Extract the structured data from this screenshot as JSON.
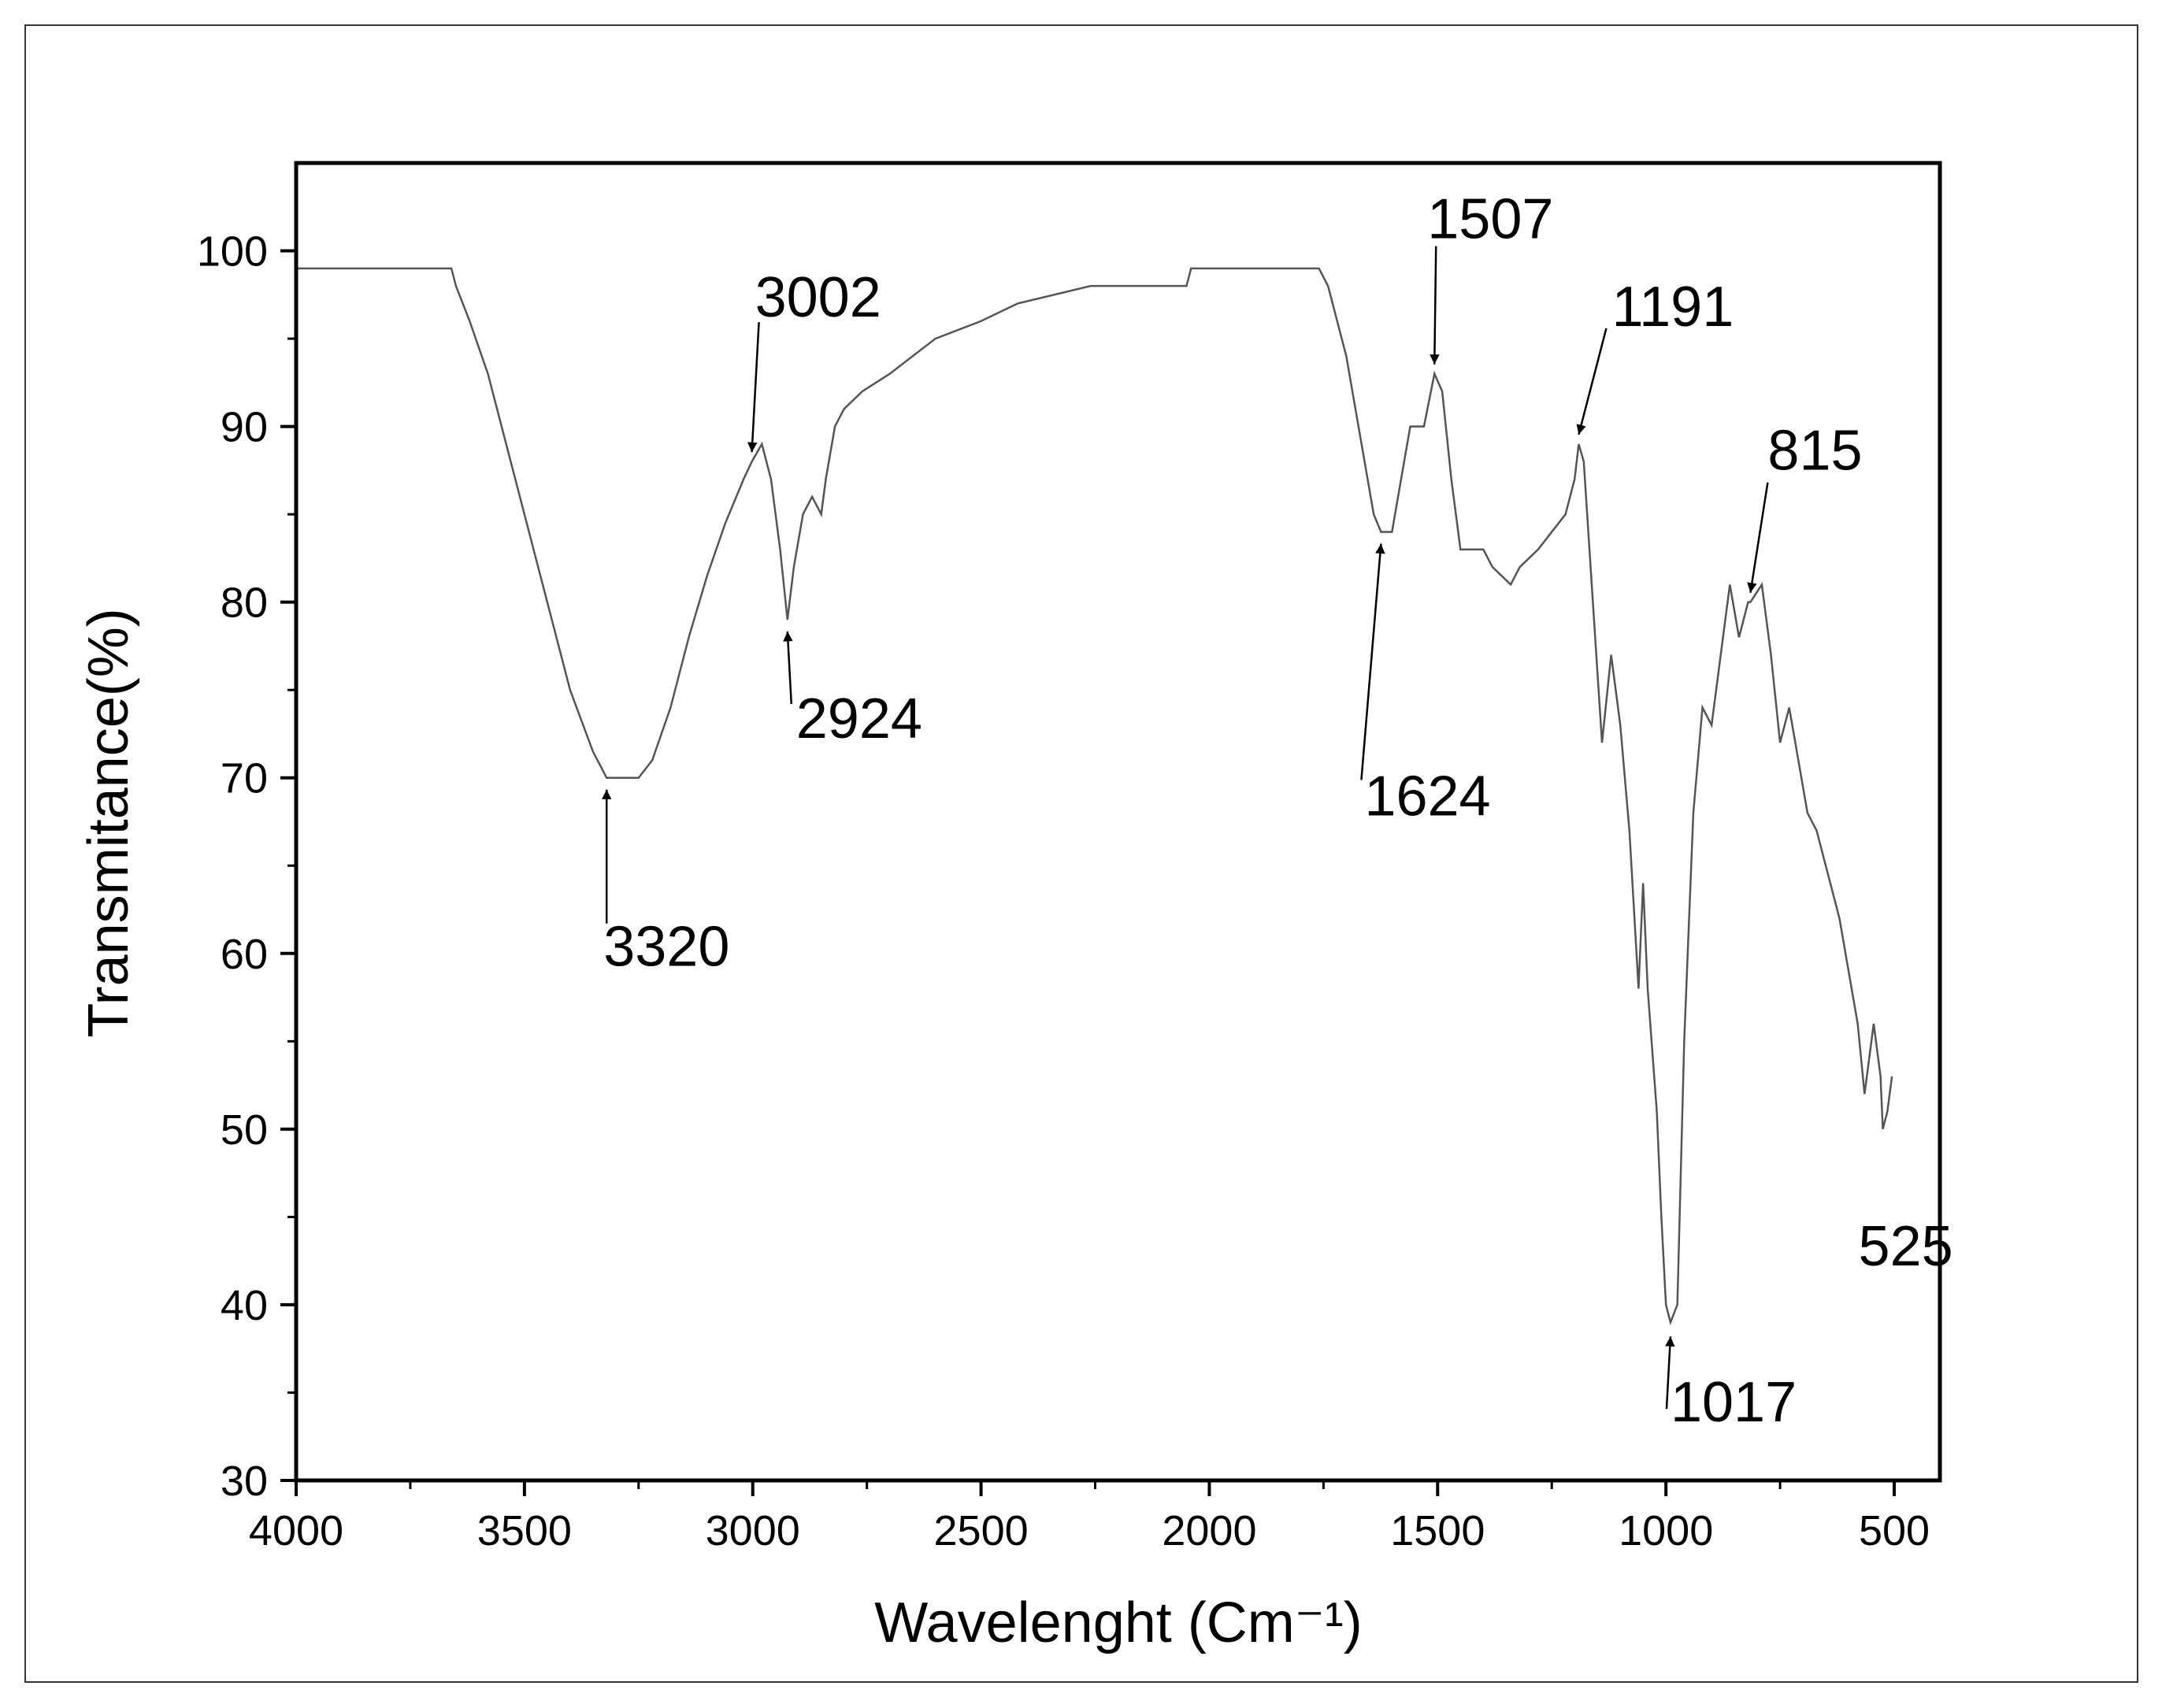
{
  "chart_data": {
    "type": "line",
    "xlabel": "Wavelenght (Cm⁻¹)",
    "ylabel": "Transmitance(%)",
    "xlim": [
      4000,
      400
    ],
    "ylim": [
      30,
      105
    ],
    "xticks": [
      4000,
      3500,
      3000,
      2500,
      2000,
      1500,
      1000,
      500
    ],
    "yticks": [
      30,
      40,
      50,
      60,
      70,
      80,
      90,
      100
    ],
    "series": [
      {
        "color": "#555555",
        "x": [
          4000,
          3660,
          3650,
          3620,
          3580,
          3540,
          3500,
          3450,
          3400,
          3350,
          3320,
          3250,
          3220,
          3180,
          3140,
          3100,
          3060,
          3020,
          3002,
          2980,
          2960,
          2940,
          2924,
          2910,
          2890,
          2870,
          2850,
          2840,
          2820,
          2800,
          2760,
          2700,
          2650,
          2600,
          2500,
          2420,
          2260,
          2050,
          2040,
          2000,
          1980,
          1760,
          1740,
          1720,
          1700,
          1680,
          1660,
          1640,
          1624,
          1600,
          1580,
          1560,
          1530,
          1507,
          1490,
          1470,
          1450,
          1400,
          1380,
          1340,
          1320,
          1280,
          1250,
          1220,
          1200,
          1191,
          1180,
          1160,
          1140,
          1120,
          1100,
          1080,
          1060,
          1050,
          1040,
          1020,
          1010,
          1000,
          990,
          975,
          960,
          940,
          920,
          900,
          880,
          860,
          840,
          820,
          815,
          790,
          770,
          750,
          730,
          710,
          690,
          670,
          650,
          620,
          600,
          580,
          565,
          545,
          530,
          525,
          515,
          505
        ],
        "values": [
          99,
          99,
          98,
          96,
          93,
          89,
          85,
          80,
          75,
          71.5,
          70,
          70,
          71,
          74,
          78,
          81.5,
          84.5,
          87,
          88,
          89,
          87,
          83,
          79,
          82,
          85,
          86,
          85,
          87,
          90,
          91,
          92,
          93,
          94,
          95,
          96,
          97,
          98,
          98,
          99,
          99,
          99,
          99,
          98,
          96,
          94,
          91,
          88,
          85,
          84,
          84,
          87,
          90,
          90,
          93,
          92,
          87,
          83,
          83,
          82,
          81,
          82,
          83,
          84,
          85,
          87,
          89,
          88,
          80,
          72,
          77,
          73,
          67,
          58,
          64,
          58,
          51,
          45,
          40,
          39,
          40,
          55,
          68,
          74,
          73,
          77,
          81,
          78,
          80,
          80,
          81,
          77,
          72,
          74,
          71,
          68,
          67,
          65,
          62,
          59,
          56,
          52,
          56,
          53,
          50,
          51,
          53
        ]
      }
    ],
    "annotations": [
      {
        "text": "3320",
        "x": 3320,
        "y": 70
      },
      {
        "text": "3002",
        "x": 3002,
        "y": 88
      },
      {
        "text": "2924",
        "x": 2924,
        "y": 79
      },
      {
        "text": "1624",
        "x": 1624,
        "y": 84
      },
      {
        "text": "1507",
        "x": 1507,
        "y": 93
      },
      {
        "text": "1191",
        "x": 1191,
        "y": 89
      },
      {
        "text": "815",
        "x": 815,
        "y": 80
      },
      {
        "text": "525",
        "x": 525,
        "y": 50
      },
      {
        "text": "1017",
        "x": 990,
        "y": 39
      }
    ]
  }
}
